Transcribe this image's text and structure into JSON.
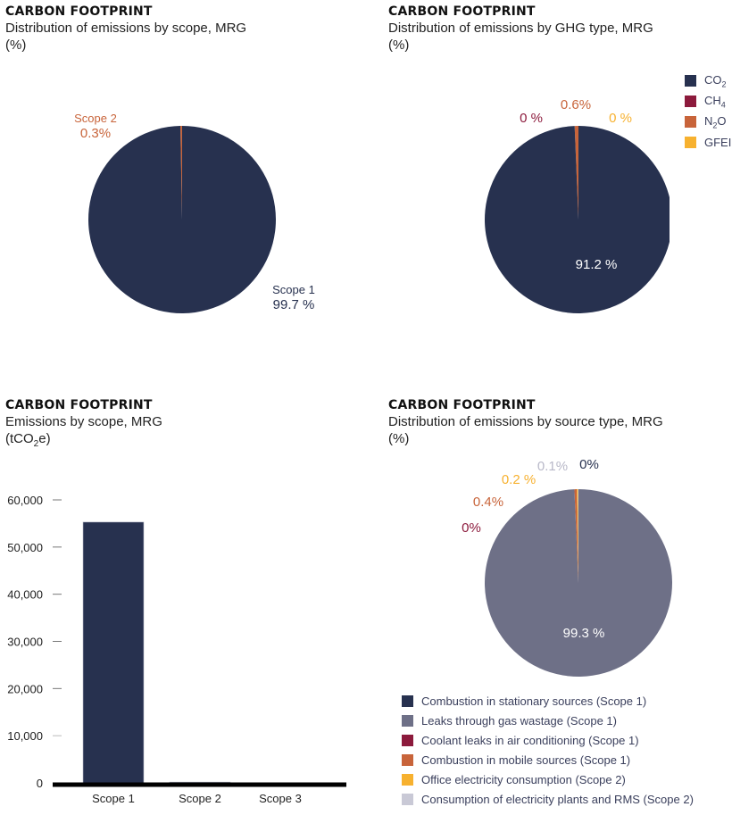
{
  "chart_data": [
    {
      "id": "scope-pie",
      "type": "pie",
      "kicker": "CARBON FOOTPRINT",
      "title": "Distribution of emissions by scope, MRG",
      "unit": "(%)",
      "slices": [
        {
          "name": "Scope 1",
          "value": 99.7,
          "label": "Scope 1",
          "value_label": "99.7 %",
          "color": "#27314f",
          "label_color": "#27314f"
        },
        {
          "name": "Scope 2",
          "value": 0.3,
          "label": "Scope 2",
          "value_label": "0.3%",
          "color": "#c8643a",
          "label_color": "#c8643a"
        }
      ]
    },
    {
      "id": "ghg-pie",
      "type": "pie",
      "kicker": "CARBON FOOTPRINT",
      "title": "Distribution of emissions by GHG type, MRG",
      "unit": "(%)",
      "legend_position": "top-right",
      "slices": [
        {
          "name": "CO2",
          "legend_main": "CO",
          "legend_sub": "2",
          "value": 91.2,
          "value_label": "91.2 %",
          "color": "#27314f",
          "label_color": "#ffffff"
        },
        {
          "name": "CH4",
          "legend_main": "CH",
          "legend_sub": "4",
          "value": 0,
          "value_label": "0 %",
          "color": "#8c1a3c",
          "label_color": "#8c1a3c"
        },
        {
          "name": "N2O",
          "legend_main": "N",
          "legend_sub": "2",
          "legend_tail": "O",
          "value": 0.6,
          "value_label": "0.6%",
          "color": "#c8643a",
          "label_color": "#c8643a"
        },
        {
          "name": "GFEI",
          "legend_main": "GFEI",
          "value": 0,
          "value_label": "0 %",
          "color": "#f7b12f",
          "label_color": "#f7b12f"
        }
      ]
    },
    {
      "id": "scope-bar",
      "type": "bar",
      "kicker": "CARBON FOOTPRINT",
      "title": "Emissions by scope, MRG",
      "unit_main": "(tCO",
      "unit_sub": "2",
      "unit_tail": "e)",
      "categories": [
        "Scope 1",
        "Scope 2",
        "Scope 3"
      ],
      "values": [
        55300,
        170,
        0
      ],
      "ylim": [
        0,
        60000
      ],
      "yticks": [
        0,
        10000,
        20000,
        30000,
        40000,
        50000,
        60000
      ],
      "ytick_labels": [
        "0",
        "10,000",
        "20,000",
        "30,000",
        "40,000",
        "50,000",
        "60,000"
      ],
      "bar_color": "#27314f",
      "grid": false
    },
    {
      "id": "source-pie",
      "type": "pie",
      "kicker": "CARBON FOOTPRINT",
      "title": "Distribution of emissions by source type, MRG",
      "unit": "(%)",
      "legend_position": "bottom",
      "slices": [
        {
          "name": "Combustion in stationary sources (Scope 1)",
          "value": 0,
          "value_label": "0%",
          "color": "#27314f",
          "label_color": "#27314f"
        },
        {
          "name": "Leaks through gas wastage (Scope 1)",
          "value": 99.3,
          "value_label": "99.3 %",
          "color": "#6e7087",
          "label_color": "#ffffff"
        },
        {
          "name": "Coolant leaks in air conditioning (Scope 1)",
          "value": 0,
          "value_label": "0%",
          "color": "#8c1a3c",
          "label_color": "#8c1a3c"
        },
        {
          "name": "Combustion in mobile sources (Scope 1)",
          "value": 0.4,
          "value_label": "0.4%",
          "color": "#c8643a",
          "label_color": "#c8643a"
        },
        {
          "name": "Office electricity consumption (Scope 2)",
          "value": 0.2,
          "value_label": "0.2 %",
          "color": "#f7b12f",
          "label_color": "#f7b12f"
        },
        {
          "name": "Consumption of electricity plants and RMS (Scope 2)",
          "value": 0.1,
          "value_label": "0.1%",
          "color": "#c9c9d6",
          "label_color": "#b8b8c8"
        }
      ]
    }
  ]
}
